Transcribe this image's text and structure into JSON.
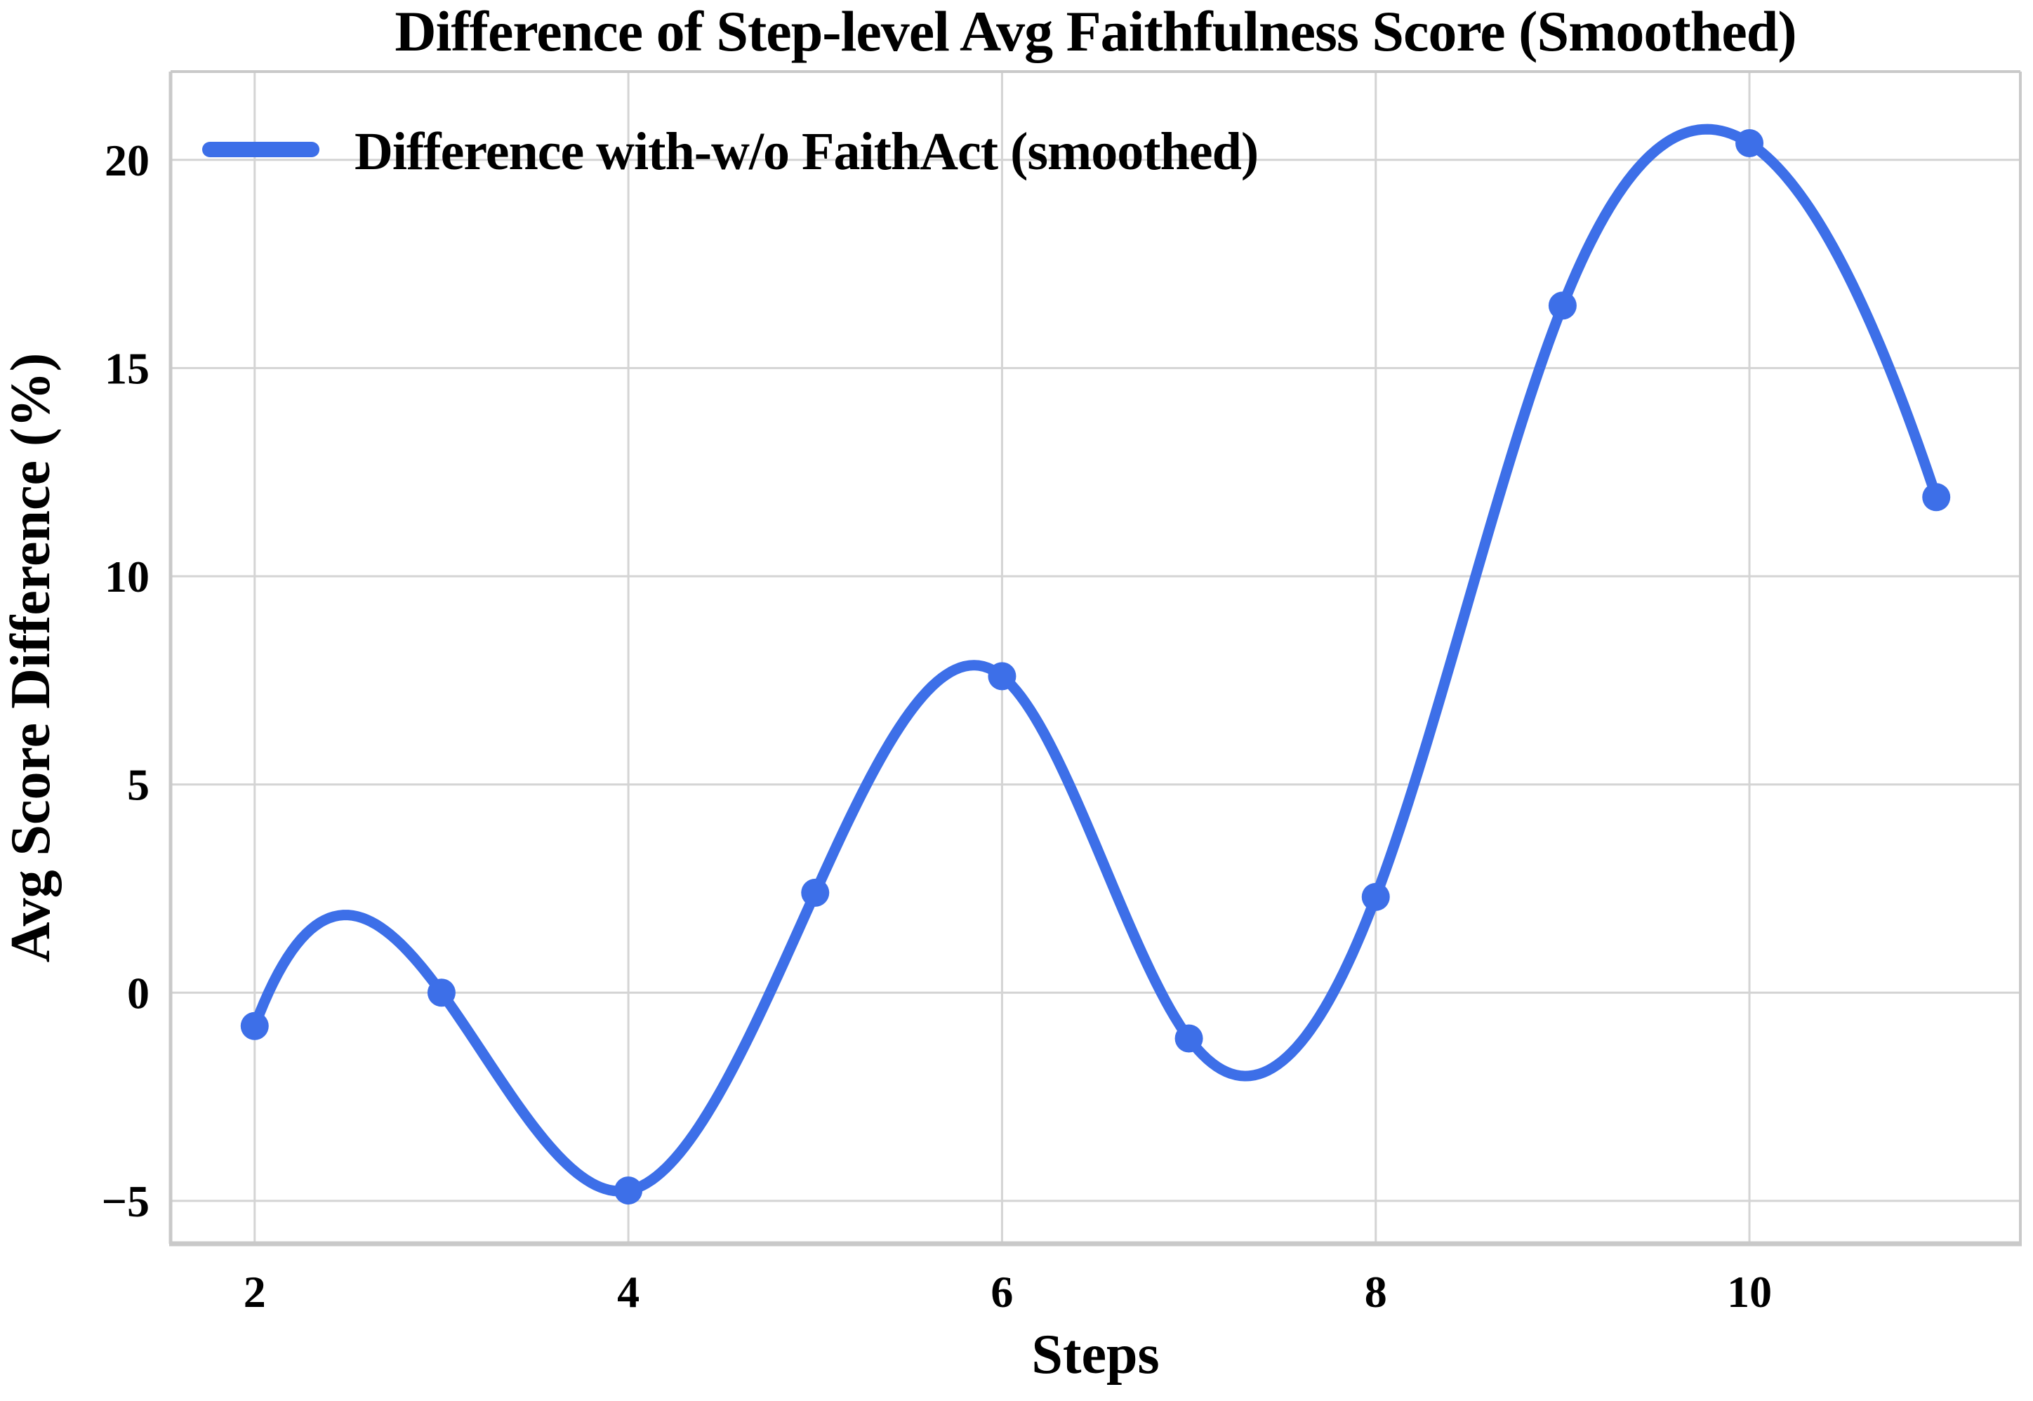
{
  "chart_data": {
    "type": "line",
    "title": "Difference of Step-level Avg Faithfulness Score (Smoothed)",
    "xlabel": "Steps",
    "ylabel": "Avg Score Difference (%)",
    "grid": true,
    "legend_position": "upper left",
    "xlim": [
      1.55,
      11.45
    ],
    "ylim": [
      -6.03,
      22.12
    ],
    "xticks": [
      2,
      4,
      6,
      8,
      10
    ],
    "yticks": [
      -5,
      0,
      5,
      10,
      15,
      20
    ],
    "series": [
      {
        "name": "Difference with-w/o FaithAct (smoothed)",
        "x": [
          2,
          3,
          4,
          5,
          6,
          7,
          8,
          9,
          10,
          11
        ],
        "y": [
          -0.8,
          0.0,
          -4.75,
          2.4,
          7.6,
          -1.1,
          2.3,
          16.5,
          20.4,
          11.9
        ],
        "color": "#3D6FE8",
        "marker": "circle",
        "smoothing": "cubic-spline-not-a-knot"
      }
    ],
    "colors": {
      "line": "#3D6FE8",
      "grid": "#D4D4D4",
      "spine": "#C9C9C9",
      "text": "#000000",
      "background": "#FFFFFF"
    }
  }
}
